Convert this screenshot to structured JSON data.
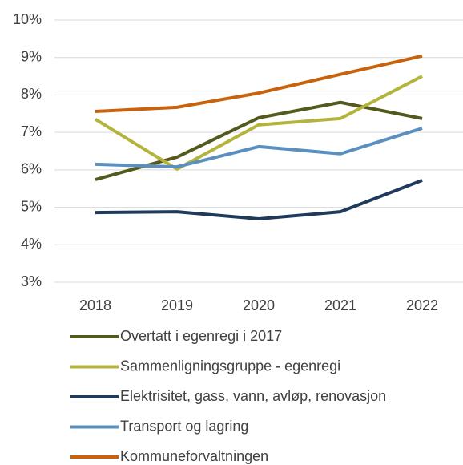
{
  "chart_data": {
    "type": "line",
    "categories": [
      "2018",
      "2019",
      "2020",
      "2021",
      "2022"
    ],
    "series": [
      {
        "name": "Overtatt i egenregi i 2017",
        "color": "#545a1e",
        "values": [
          5.74,
          6.34,
          7.39,
          7.8,
          7.37
        ]
      },
      {
        "name": "Sammenligningsgruppe - egenregi",
        "color": "#b4b43c",
        "values": [
          7.35,
          6.02,
          7.2,
          7.37,
          8.5
        ]
      },
      {
        "name": "Elektrisitet, gass, vann, avløp, renovasjon",
        "color": "#1f3a5a",
        "values": [
          4.86,
          4.88,
          4.69,
          4.88,
          5.72
        ]
      },
      {
        "name": "Transport og lagring",
        "color": "#5b8fc0",
        "values": [
          6.15,
          6.08,
          6.62,
          6.43,
          7.11
        ]
      },
      {
        "name": "Kommuneforvaltningen",
        "color": "#c8620c",
        "values": [
          7.56,
          7.67,
          8.05,
          8.55,
          9.04
        ]
      }
    ],
    "ylim": [
      3,
      10
    ],
    "yticks": [
      {
        "value": 3,
        "label": "3%"
      },
      {
        "value": 4,
        "label": "4%"
      },
      {
        "value": 5,
        "label": "5%"
      },
      {
        "value": 6,
        "label": "6%"
      },
      {
        "value": 7,
        "label": "7%"
      },
      {
        "value": 8,
        "label": "8%"
      },
      {
        "value": 9,
        "label": "9%"
      },
      {
        "value": 10,
        "label": "10%"
      }
    ],
    "grid": true
  }
}
